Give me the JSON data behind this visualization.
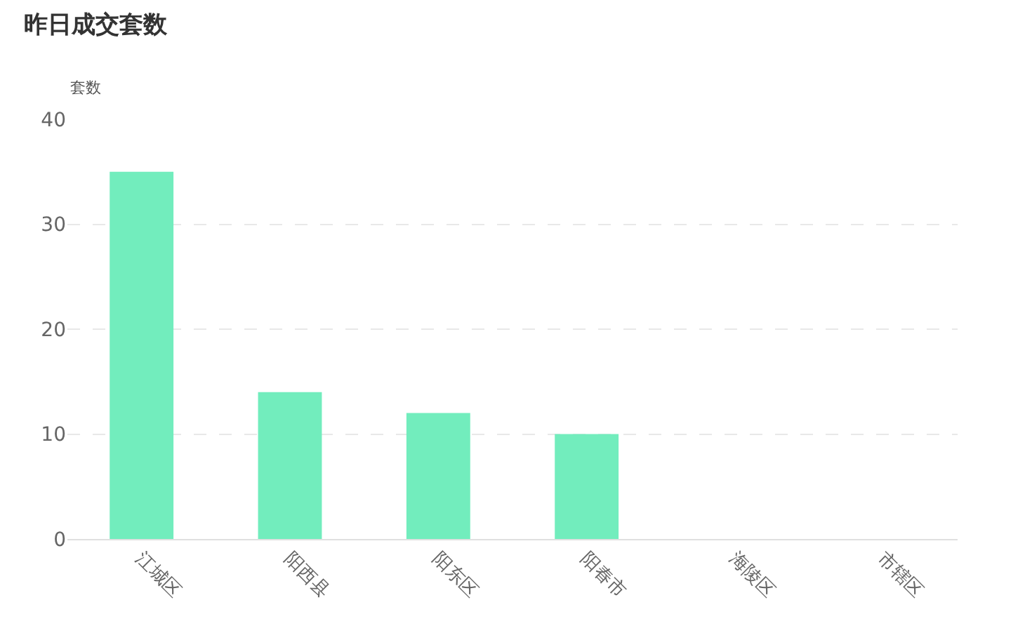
{
  "chart_data": {
    "type": "bar",
    "title": "昨日成交套数",
    "ylabel": "套数",
    "categories": [
      "江城区",
      "阳西县",
      "阳东区",
      "阳春市",
      "海陵区",
      "市辖区"
    ],
    "values": [
      35,
      14,
      12,
      10,
      0,
      0
    ],
    "color": "#72edbd",
    "ylim": [
      0,
      40
    ],
    "yticks": [
      0,
      10,
      20,
      30,
      40
    ],
    "grid": "y",
    "legend": false
  }
}
